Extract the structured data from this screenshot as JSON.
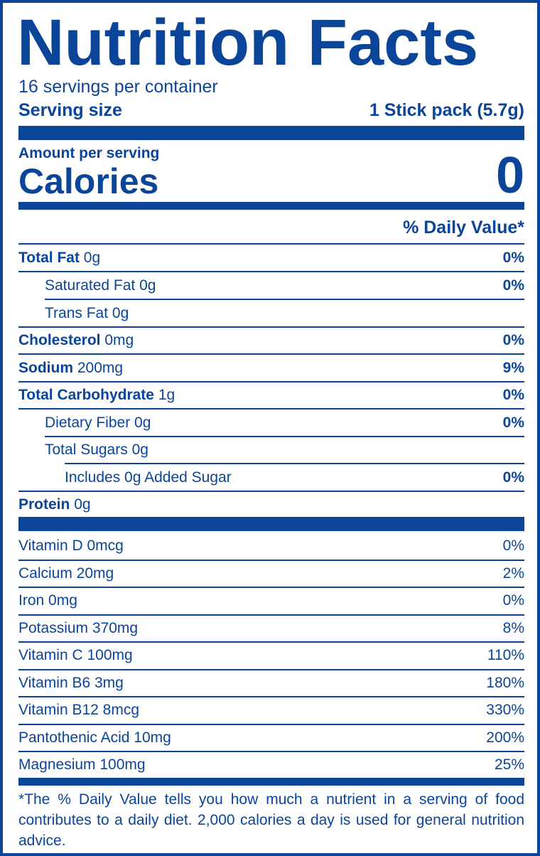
{
  "title": "Nutrition Facts",
  "servings_per_container": "16 servings per container",
  "serving_size": {
    "label": "Serving size",
    "value": "1 Stick pack (5.7g)"
  },
  "amount_per_serving": "Amount per serving",
  "calories": {
    "label": "Calories",
    "value": "0"
  },
  "daily_value_header": "% Daily Value*",
  "nutrients": [
    {
      "name": "Total Fat",
      "amount": "0g",
      "dv": "0%"
    },
    {
      "name": "Saturated Fat",
      "amount": "0g",
      "dv": "0%"
    },
    {
      "name": "Trans Fat",
      "amount": "0g",
      "dv": ""
    },
    {
      "name": "Cholesterol",
      "amount": "0mg",
      "dv": "0%"
    },
    {
      "name": "Sodium",
      "amount": "200mg",
      "dv": "9%"
    },
    {
      "name": "Total Carbohydrate",
      "amount": "1g",
      "dv": "0%"
    },
    {
      "name": "Dietary Fiber",
      "amount": "0g",
      "dv": "0%"
    },
    {
      "name": "Total Sugars",
      "amount": "0g",
      "dv": ""
    },
    {
      "name": "Includes 0g Added Sugar",
      "amount": "",
      "dv": "0%"
    },
    {
      "name": "Protein",
      "amount": "0g",
      "dv": ""
    }
  ],
  "vitamins": [
    {
      "text": "Vitamin D 0mcg",
      "dv": "0%"
    },
    {
      "text": "Calcium 20mg",
      "dv": "2%"
    },
    {
      "text": "Iron 0mg",
      "dv": "0%"
    },
    {
      "text": "Potassium 370mg",
      "dv": "8%"
    },
    {
      "text": "Vitamin C 100mg",
      "dv": "110%"
    },
    {
      "text": "Vitamin B6 3mg",
      "dv": "180%"
    },
    {
      "text": "Vitamin B12 8mcg",
      "dv": "330%"
    },
    {
      "text": "Pantothenic Acid 10mg",
      "dv": "200%"
    },
    {
      "text": "Magnesium 100mg",
      "dv": "25%"
    }
  ],
  "footnote": "*The % Daily Value tells you how much a nutrient in a serving of food contributes to a daily diet. 2,000 calories a day is used for general nutrition advice.",
  "colors": {
    "ink": "#0a4599",
    "background": "#ffffff"
  }
}
